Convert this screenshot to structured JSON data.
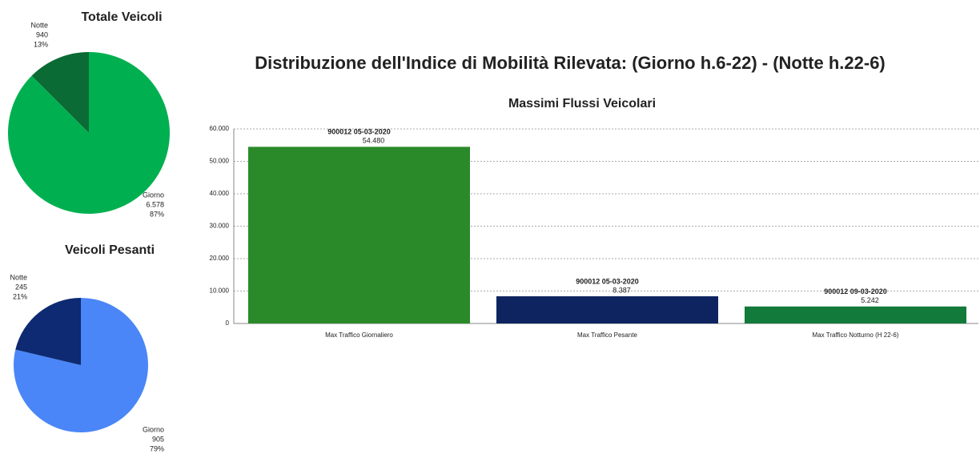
{
  "title": "Distribuzione dell'Indice di Mobilità Rilevata: (Giorno h.6-22) - (Notte h.22-6)",
  "chart_data": [
    {
      "type": "pie",
      "title": "Totale Veicoli",
      "categories": [
        "Giorno",
        "Notte"
      ],
      "values": [
        6578,
        940
      ],
      "value_labels": [
        "6.578",
        "940"
      ],
      "percent_labels": [
        "87%",
        "13%"
      ],
      "colors": [
        "#00b050",
        "#0a6b34"
      ]
    },
    {
      "type": "pie",
      "title": "Veicoli Pesanti",
      "categories": [
        "Giorno",
        "Notte"
      ],
      "values": [
        905,
        245
      ],
      "percent_labels": [
        "79%",
        "21%"
      ],
      "colors": [
        "#4a86f7",
        "#0e2a72"
      ]
    },
    {
      "type": "bar",
      "title": "Massimi Flussi Veicolari",
      "categories": [
        "Max Traffico Giornaliero",
        "Max Traffico Pesante",
        "Max Traffico Notturno (H 22-6)"
      ],
      "values": [
        54480,
        8387,
        5242
      ],
      "value_labels": [
        "54.480",
        "8.387",
        "5.242"
      ],
      "annotations": [
        "900012 05-03-2020",
        "900012 05-03-2020",
        "900012 09-03-2020"
      ],
      "colors": [
        "#2a8a2a",
        "#0d2460",
        "#127a3a"
      ],
      "ylim": [
        0,
        60000
      ],
      "yticks": [
        0,
        {
          "value": 10000,
          "label": "10.000"
        },
        {
          "value": 20000,
          "label": "20.000"
        },
        {
          "value": 30000,
          "label": "30.000"
        },
        {
          "value": 40000,
          "label": "40.000"
        },
        {
          "value": 50000,
          "label": "50.000"
        },
        {
          "value": 60000,
          "label": "60.000"
        }
      ],
      "grid": true
    }
  ]
}
